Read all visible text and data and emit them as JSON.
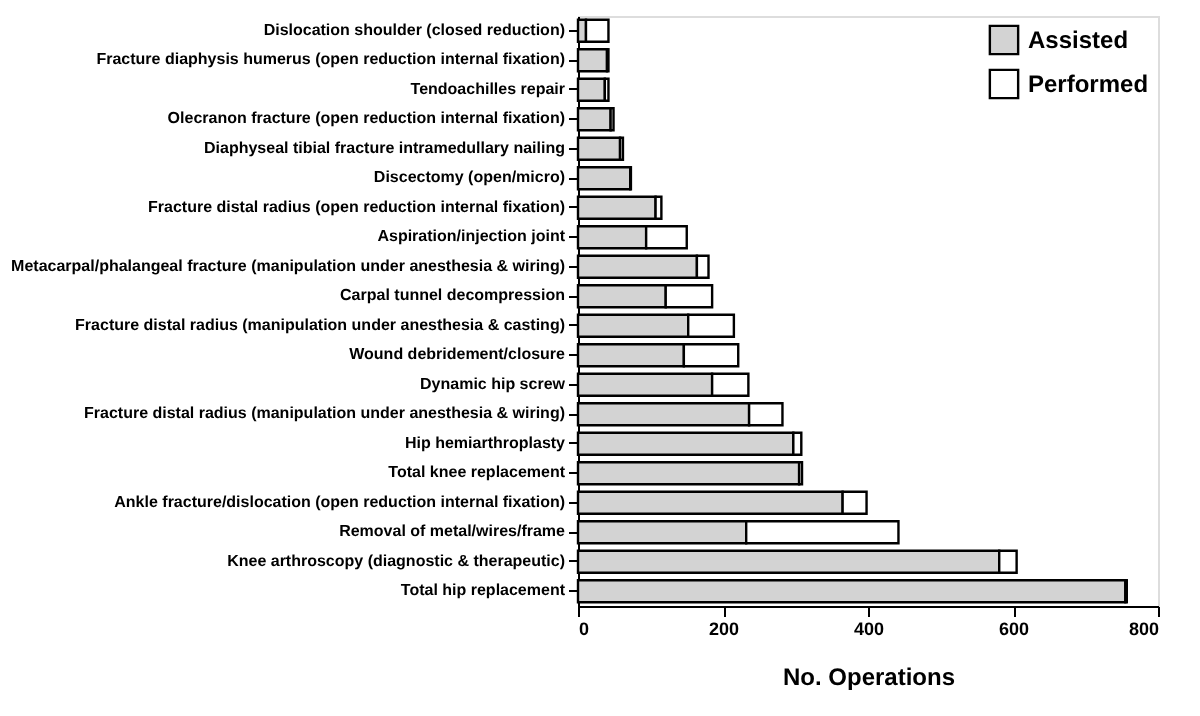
{
  "chart_data": {
    "type": "bar",
    "orientation": "horizontal",
    "stacked": true,
    "xlabel": "No. Operations",
    "categories": [
      "Dislocation shoulder (closed reduction)",
      "Fracture diaphysis humerus (open reduction internal fixation)",
      "Tendoachilles repair",
      "Olecranon fracture (open reduction internal fixation)",
      "Diaphyseal tibial fracture intramedullary nailing",
      "Discectomy (open/micro)",
      "Fracture distal radius (open reduction internal fixation)",
      "Aspiration/injection joint",
      "Metacarpal/phalangeal fracture (manipulation under anesthesia & wiring)",
      "Carpal tunnel decompression",
      "Fracture distal radius (manipulation under anesthesia & casting)",
      "Wound debridement/closure",
      "Dynamic hip screw",
      "Fracture distal radius (manipulation under anesthesia & wiring)",
      "Hip hemiarthroplasty",
      "Total knee replacement",
      "Ankle fracture/dislocation (open reduction internal fixation)",
      "Removal of metal/wires/frame",
      "Knee arthroscopy (diagnostic & therapeutic)",
      "Total hip replacement"
    ],
    "series": [
      {
        "name": "Assisted",
        "color": "#d3d3d3",
        "values": [
          11,
          40,
          37,
          45,
          58,
          72,
          107,
          94,
          164,
          121,
          152,
          146,
          185,
          236,
          297,
          305,
          365,
          232,
          581,
          755
        ]
      },
      {
        "name": "Performed",
        "color": "#ffffff",
        "values": [
          31,
          2,
          5,
          4,
          4,
          1,
          8,
          56,
          16,
          64,
          63,
          75,
          50,
          46,
          11,
          4,
          33,
          210,
          24,
          2
        ]
      }
    ],
    "xlim": [
      0,
      800
    ],
    "xticks": [
      0,
      200,
      400,
      600,
      800
    ],
    "grid": false,
    "legend": "top right"
  }
}
